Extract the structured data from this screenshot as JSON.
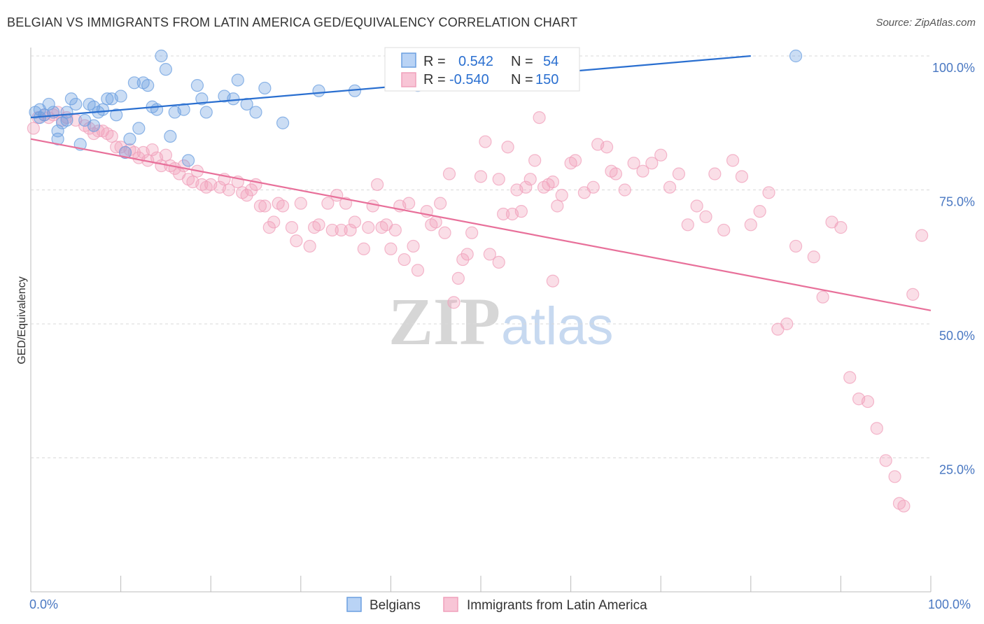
{
  "header": {
    "title": "BELGIAN VS IMMIGRANTS FROM LATIN AMERICA GED/EQUIVALENCY CORRELATION CHART",
    "source": "Source: ZipAtlas.com"
  },
  "watermark": {
    "zip": "ZIP",
    "atlas": "atlas"
  },
  "stats": {
    "r_label": "R =",
    "n_label": "N =",
    "rows": [
      {
        "r": "0.542",
        "n": "54"
      },
      {
        "r": "-0.540",
        "n": "150"
      }
    ]
  },
  "chart_data": {
    "type": "scatter",
    "title": "BELGIAN VS IMMIGRANTS FROM LATIN AMERICA GED/EQUIVALENCY CORRELATION CHART",
    "xlabel": "",
    "ylabel": "GED/Equivalency",
    "xlim": [
      0,
      100
    ],
    "ylim": [
      0,
      100
    ],
    "x_tick_labels": [
      "0.0%",
      "100.0%"
    ],
    "y_tick_labels": [
      "25.0%",
      "50.0%",
      "75.0%",
      "100.0%"
    ],
    "y_ticks": [
      25,
      50,
      75,
      100
    ],
    "grid": "horizontal dashed",
    "legend_position": "bottom-center",
    "colors": {
      "belgians": "#6b9fe0",
      "latin": "#f0a0bb",
      "belgians_line": "#2a6fd0",
      "latin_line": "#e8709a"
    },
    "series": [
      {
        "name": "Belgians",
        "trend": [
          [
            0,
            88.5
          ],
          [
            80,
            100
          ]
        ],
        "points": [
          [
            0.5,
            89.5
          ],
          [
            1,
            90
          ],
          [
            1.5,
            89
          ],
          [
            2.5,
            89.5
          ],
          [
            3,
            84.5
          ],
          [
            3.5,
            87.5
          ],
          [
            4,
            89.5
          ],
          [
            4.5,
            92
          ],
          [
            5,
            91
          ],
          [
            6,
            88
          ],
          [
            6.5,
            91
          ],
          [
            7,
            90.5
          ],
          [
            7.5,
            89.5
          ],
          [
            8,
            90
          ],
          [
            8.5,
            92
          ],
          [
            9,
            92
          ],
          [
            9.5,
            89
          ],
          [
            10,
            92.5
          ],
          [
            10.5,
            82
          ],
          [
            11,
            84.5
          ],
          [
            11.5,
            95
          ],
          [
            12,
            86.5
          ],
          [
            12.5,
            95
          ],
          [
            13,
            94.5
          ],
          [
            13.5,
            90.5
          ],
          [
            14,
            90
          ],
          [
            14.5,
            100
          ],
          [
            15,
            97.5
          ],
          [
            15.5,
            85
          ],
          [
            16,
            89.5
          ],
          [
            17,
            90
          ],
          [
            17.5,
            80.5
          ],
          [
            18.5,
            94.5
          ],
          [
            19,
            92
          ],
          [
            19.5,
            89.5
          ],
          [
            21.5,
            92.5
          ],
          [
            22.5,
            92
          ],
          [
            23,
            95.5
          ],
          [
            24,
            91
          ],
          [
            25,
            89.5
          ],
          [
            26,
            94
          ],
          [
            28,
            87.5
          ],
          [
            32,
            93.5
          ],
          [
            36,
            93.5
          ],
          [
            43,
            94.5
          ],
          [
            51,
            100
          ],
          [
            52,
            95
          ],
          [
            85,
            100
          ],
          [
            4,
            88
          ],
          [
            2,
            91
          ],
          [
            7,
            87
          ],
          [
            1,
            88.5
          ],
          [
            5.5,
            83.5
          ],
          [
            3,
            86
          ]
        ]
      },
      {
        "name": "Immigrants from Latin America",
        "trend": [
          [
            0,
            84.5
          ],
          [
            100,
            52.5
          ]
        ],
        "points": [
          [
            0.3,
            86.5
          ],
          [
            0.8,
            88.5
          ],
          [
            1.5,
            89
          ],
          [
            2,
            88.5
          ],
          [
            2.5,
            89
          ],
          [
            3,
            89.5
          ],
          [
            3.5,
            88
          ],
          [
            4,
            88.5
          ],
          [
            5,
            88
          ],
          [
            6,
            87
          ],
          [
            6.5,
            86.5
          ],
          [
            7,
            85.5
          ],
          [
            7.5,
            86
          ],
          [
            8,
            86
          ],
          [
            8.5,
            85.5
          ],
          [
            9,
            85
          ],
          [
            9.5,
            83
          ],
          [
            10,
            83
          ],
          [
            10.5,
            82
          ],
          [
            11,
            82.5
          ],
          [
            11.5,
            82
          ],
          [
            12,
            81
          ],
          [
            12.5,
            82
          ],
          [
            13,
            80.5
          ],
          [
            13.5,
            82.5
          ],
          [
            14,
            81
          ],
          [
            14.5,
            79.5
          ],
          [
            15,
            81.5
          ],
          [
            15.5,
            79.5
          ],
          [
            16,
            79
          ],
          [
            16.5,
            78
          ],
          [
            17,
            79.5
          ],
          [
            17.5,
            77
          ],
          [
            18,
            76.5
          ],
          [
            18.5,
            78.5
          ],
          [
            19,
            76
          ],
          [
            19.5,
            75.5
          ],
          [
            20,
            76
          ],
          [
            21,
            75.5
          ],
          [
            21.5,
            77
          ],
          [
            22,
            75
          ],
          [
            23,
            76.5
          ],
          [
            23.5,
            74.5
          ],
          [
            24,
            74
          ],
          [
            24.5,
            75
          ],
          [
            25,
            76
          ],
          [
            25.5,
            72
          ],
          [
            26,
            72
          ],
          [
            26.5,
            68
          ],
          [
            27,
            69
          ],
          [
            27.5,
            72.5
          ],
          [
            28,
            72
          ],
          [
            29,
            68
          ],
          [
            29.5,
            65.5
          ],
          [
            30,
            72.5
          ],
          [
            31,
            64.5
          ],
          [
            31.5,
            68
          ],
          [
            32,
            68.5
          ],
          [
            33,
            72.5
          ],
          [
            33.5,
            67.5
          ],
          [
            34,
            74
          ],
          [
            34.5,
            67.5
          ],
          [
            35,
            72.5
          ],
          [
            35.5,
            67.5
          ],
          [
            36,
            69
          ],
          [
            37,
            64
          ],
          [
            37.5,
            68
          ],
          [
            38,
            72
          ],
          [
            38.5,
            76
          ],
          [
            39,
            68
          ],
          [
            39.5,
            68.5
          ],
          [
            40,
            64
          ],
          [
            40.5,
            67.5
          ],
          [
            41,
            72
          ],
          [
            41.5,
            62
          ],
          [
            42,
            72.5
          ],
          [
            42.5,
            64.5
          ],
          [
            43,
            60
          ],
          [
            44,
            71
          ],
          [
            44.5,
            68.5
          ],
          [
            45,
            69
          ],
          [
            45.5,
            72.5
          ],
          [
            46,
            67
          ],
          [
            46.5,
            78
          ],
          [
            47,
            54
          ],
          [
            47.5,
            58.5
          ],
          [
            48,
            62
          ],
          [
            48.5,
            63
          ],
          [
            49,
            67
          ],
          [
            50,
            77.5
          ],
          [
            50.5,
            84
          ],
          [
            51,
            63
          ],
          [
            52,
            77
          ],
          [
            52.5,
            70.5
          ],
          [
            53,
            83
          ],
          [
            53.5,
            70.5
          ],
          [
            54,
            75
          ],
          [
            54.5,
            71
          ],
          [
            55,
            75.5
          ],
          [
            55.5,
            77
          ],
          [
            56,
            80.5
          ],
          [
            56.5,
            88.5
          ],
          [
            57,
            75.5
          ],
          [
            57.5,
            76
          ],
          [
            58,
            76.5
          ],
          [
            58.5,
            72
          ],
          [
            59,
            74
          ],
          [
            60,
            80
          ],
          [
            60.5,
            80.5
          ],
          [
            61.5,
            74.5
          ],
          [
            62.5,
            75.5
          ],
          [
            63,
            83.5
          ],
          [
            64,
            83
          ],
          [
            64.5,
            78.5
          ],
          [
            65,
            78
          ],
          [
            66,
            75
          ],
          [
            67,
            80
          ],
          [
            68,
            78.5
          ],
          [
            69,
            80
          ],
          [
            70,
            81.5
          ],
          [
            71,
            75.5
          ],
          [
            72,
            78
          ],
          [
            73,
            68.5
          ],
          [
            74,
            72
          ],
          [
            75,
            70
          ],
          [
            76,
            78
          ],
          [
            77,
            67.5
          ],
          [
            78,
            80.5
          ],
          [
            79,
            77.5
          ],
          [
            80,
            68.5
          ],
          [
            81,
            71
          ],
          [
            82,
            74.5
          ],
          [
            83,
            49
          ],
          [
            84,
            50
          ],
          [
            85,
            64.5
          ],
          [
            87,
            62.5
          ],
          [
            88,
            55
          ],
          [
            89,
            69
          ],
          [
            90,
            68
          ],
          [
            91,
            40
          ],
          [
            92,
            36
          ],
          [
            93,
            35.5
          ],
          [
            94,
            30.5
          ],
          [
            95,
            24.5
          ],
          [
            96,
            21.5
          ],
          [
            96.5,
            16.5
          ],
          [
            97,
            16
          ],
          [
            98,
            55.5
          ],
          [
            99,
            66.5
          ],
          [
            58,
            58
          ],
          [
            52,
            61.5
          ]
        ]
      }
    ]
  },
  "legend": {
    "items": [
      {
        "label": "Belgians"
      },
      {
        "label": "Immigrants from Latin America"
      }
    ]
  }
}
